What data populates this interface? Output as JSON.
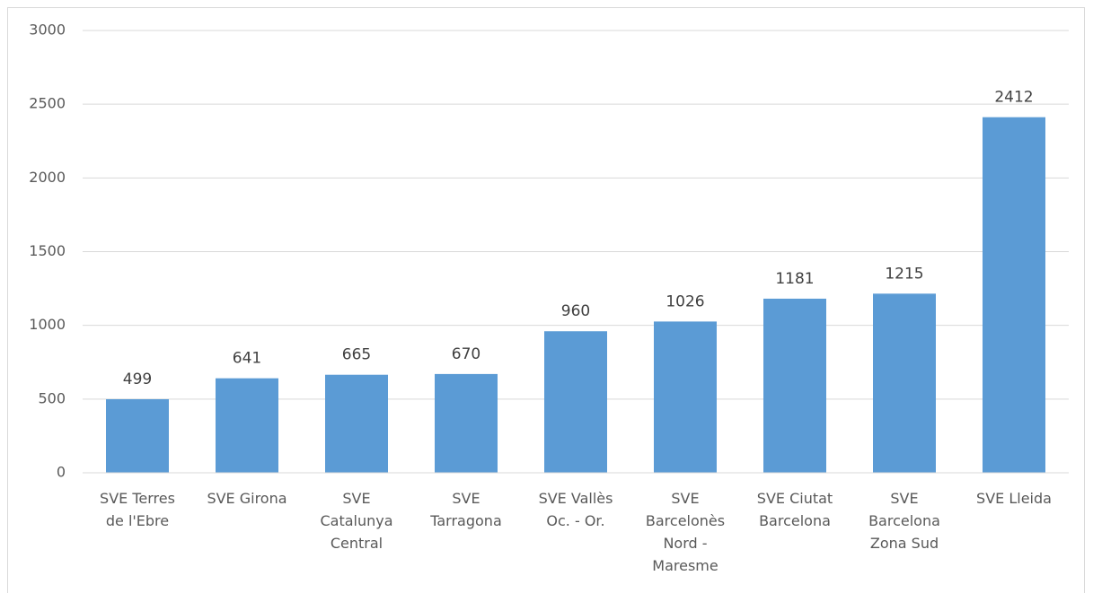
{
  "chart_data": {
    "type": "bar",
    "categories": [
      "SVE Terres de l'Ebre",
      "SVE Girona",
      "SVE Catalunya Central",
      "SVE Tarragona",
      "SVE Vallès Oc. - Or.",
      "SVE Barcelonès Nord - Maresme",
      "SVE Ciutat Barcelona",
      "SVE Barcelona Zona Sud",
      "SVE Lleida"
    ],
    "values": [
      499,
      641,
      665,
      670,
      960,
      1026,
      1181,
      1215,
      2412
    ],
    "color": "#5b9bd5",
    "ylim": [
      0,
      3000
    ],
    "yticks": [
      0,
      500,
      1000,
      1500,
      2000,
      2500,
      3000
    ],
    "grid": true
  }
}
